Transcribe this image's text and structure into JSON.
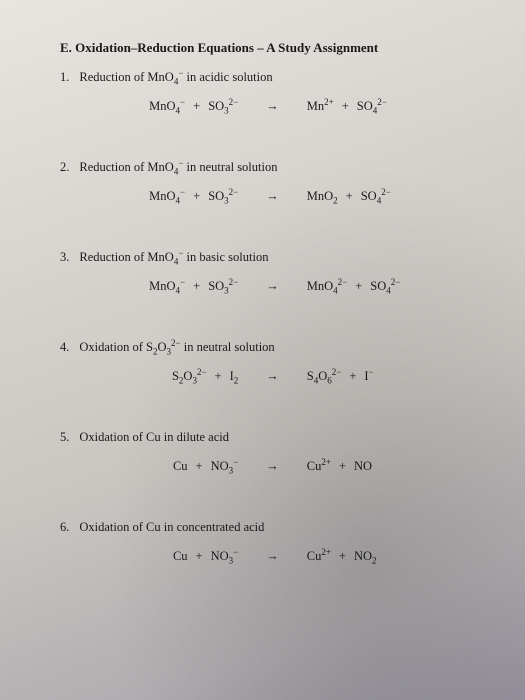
{
  "section_title": "E. Oxidation–Reduction Equations – A Study Assignment",
  "text_color": "#1a1a1a",
  "font_family": "Times New Roman",
  "title_fontsize": 13,
  "body_fontsize": 12.5,
  "background_gradient": [
    "#e8e4e0",
    "#d8d4d0",
    "#c8c4c0",
    "#b0acb0",
    "#9894a0"
  ],
  "arrow_glyph": "→",
  "plus_glyph": "+",
  "problems": [
    {
      "num": "1.",
      "title": "Reduction of MnO₄⁻ in acidic solution",
      "reactants": [
        {
          "base": "MnO",
          "sub": "4",
          "sup": "−"
        },
        {
          "base": "SO",
          "sub": "3",
          "sup": "2−"
        }
      ],
      "products": [
        {
          "base": "Mn",
          "sub": "",
          "sup": "2+"
        },
        {
          "base": "SO",
          "sub": "4",
          "sup": "2−"
        }
      ]
    },
    {
      "num": "2.",
      "title": "Reduction of MnO₄⁻ in neutral solution",
      "reactants": [
        {
          "base": "MnO",
          "sub": "4",
          "sup": "−"
        },
        {
          "base": "SO",
          "sub": "3",
          "sup": "2−"
        }
      ],
      "products": [
        {
          "base": "MnO",
          "sub": "2",
          "sup": ""
        },
        {
          "base": "SO",
          "sub": "4",
          "sup": "2−"
        }
      ]
    },
    {
      "num": "3.",
      "title": "Reduction of MnO₄⁻ in basic solution",
      "reactants": [
        {
          "base": "MnO",
          "sub": "4",
          "sup": "−"
        },
        {
          "base": "SO",
          "sub": "3",
          "sup": "2−"
        }
      ],
      "products": [
        {
          "base": "MnO",
          "sub": "4",
          "sup": "2−"
        },
        {
          "base": "SO",
          "sub": "4",
          "sup": "2−"
        }
      ]
    },
    {
      "num": "4.",
      "title": "Oxidation of S₂O₃²⁻ in neutral solution",
      "reactants": [
        {
          "base": "S",
          "sub": "2",
          "base2": "O",
          "sub2": "3",
          "sup": "2−"
        },
        {
          "base": "I",
          "sub": "2",
          "sup": ""
        }
      ],
      "products": [
        {
          "base": "S",
          "sub": "4",
          "base2": "O",
          "sub2": "6",
          "sup": "2−"
        },
        {
          "base": "I",
          "sub": "",
          "sup": "−"
        }
      ]
    },
    {
      "num": "5.",
      "title": "Oxidation of Cu in dilute acid",
      "reactants": [
        {
          "base": "Cu",
          "sub": "",
          "sup": ""
        },
        {
          "base": "NO",
          "sub": "3",
          "sup": "−"
        }
      ],
      "products": [
        {
          "base": "Cu",
          "sub": "",
          "sup": "2+"
        },
        {
          "base": "NO",
          "sub": "",
          "sup": ""
        }
      ]
    },
    {
      "num": "6.",
      "title": "Oxidation of Cu in concentrated acid",
      "reactants": [
        {
          "base": "Cu",
          "sub": "",
          "sup": ""
        },
        {
          "base": "NO",
          "sub": "3",
          "sup": "−"
        }
      ],
      "products": [
        {
          "base": "Cu",
          "sub": "",
          "sup": "2+"
        },
        {
          "base": "NO",
          "sub": "2",
          "sup": ""
        }
      ]
    }
  ]
}
